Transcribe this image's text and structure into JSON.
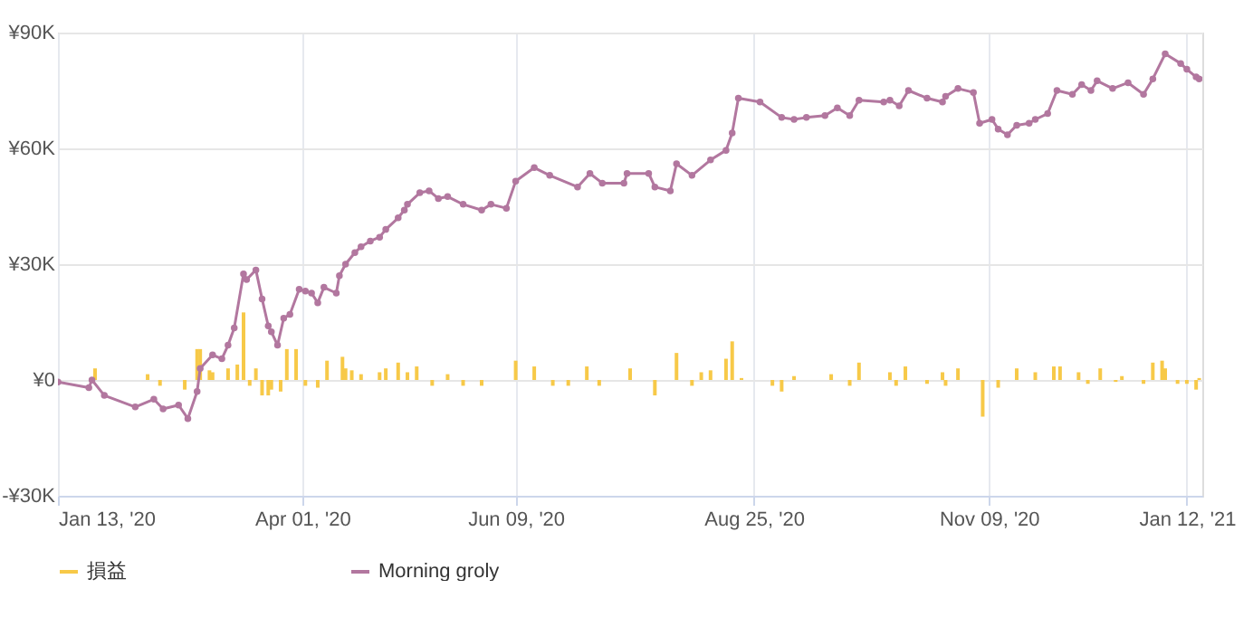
{
  "chart_data": {
    "type": "line",
    "legend": "bottom",
    "grid": true,
    "marker": "circle",
    "line_style": "solid",
    "ylim": [
      -30,
      90
    ],
    "yticks": [
      {
        "value": -30,
        "label": "-¥30K"
      },
      {
        "value": 0,
        "label": "¥0"
      },
      {
        "value": 30,
        "label": "¥30K"
      },
      {
        "value": 60,
        "label": "¥60K"
      },
      {
        "value": 90,
        "label": "¥90K"
      }
    ],
    "xlim": [
      "2020-01-13",
      "2021-01-17"
    ],
    "xticks": [
      {
        "value": "2020-01-13",
        "label": "Jan 13, '20"
      },
      {
        "value": "2020-04-01",
        "label": "Apr 01, '20"
      },
      {
        "value": "2020-06-09",
        "label": "Jun 09, '20"
      },
      {
        "value": "2020-08-25",
        "label": "Aug 25, '20"
      },
      {
        "value": "2020-11-09",
        "label": "Nov 09, '20"
      },
      {
        "value": "2021-01-12",
        "label": "Jan 12, '21"
      }
    ],
    "series": [
      {
        "name": "損益",
        "type": "bar",
        "color": "#f7c948",
        "x": [
          "2020-01-25",
          "2020-02-11",
          "2020-02-15",
          "2020-02-23",
          "2020-02-27",
          "2020-02-28",
          "2020-03-02",
          "2020-03-03",
          "2020-03-08",
          "2020-03-11",
          "2020-03-13",
          "2020-03-15",
          "2020-03-17",
          "2020-03-19",
          "2020-03-21",
          "2020-03-22",
          "2020-03-25",
          "2020-03-27",
          "2020-03-30",
          "2020-04-02",
          "2020-04-06",
          "2020-04-09",
          "2020-04-14",
          "2020-04-15",
          "2020-04-17",
          "2020-04-20",
          "2020-04-26",
          "2020-04-28",
          "2020-05-02",
          "2020-05-05",
          "2020-05-08",
          "2020-05-13",
          "2020-05-18",
          "2020-05-23",
          "2020-05-29",
          "2020-06-09",
          "2020-06-15",
          "2020-06-21",
          "2020-06-26",
          "2020-07-02",
          "2020-07-06",
          "2020-07-16",
          "2020-07-24",
          "2020-07-31",
          "2020-08-05",
          "2020-08-08",
          "2020-08-11",
          "2020-08-16",
          "2020-08-18",
          "2020-08-21",
          "2020-08-31",
          "2020-09-03",
          "2020-09-07",
          "2020-09-19",
          "2020-09-25",
          "2020-09-28",
          "2020-10-08",
          "2020-10-10",
          "2020-10-13",
          "2020-10-20",
          "2020-10-25",
          "2020-10-26",
          "2020-10-30",
          "2020-11-07",
          "2020-11-12",
          "2020-11-18",
          "2020-11-24",
          "2020-11-30",
          "2020-12-02",
          "2020-12-08",
          "2020-12-11",
          "2020-12-15",
          "2020-12-20",
          "2020-12-22",
          "2020-12-29",
          "2021-01-01",
          "2021-01-04",
          "2021-01-05",
          "2021-01-09",
          "2021-01-12",
          "2021-01-15",
          "2021-01-16"
        ],
        "values": [
          3,
          1.5,
          -1.5,
          -2.5,
          8,
          8,
          2.5,
          2,
          3,
          4,
          17.5,
          -1.5,
          3,
          -4,
          -4,
          -2.5,
          -3,
          8,
          8,
          -1.5,
          -2,
          5,
          6,
          3,
          2.5,
          1.5,
          2,
          3,
          4.5,
          2,
          3.5,
          -1.5,
          1.5,
          -1.5,
          -1.5,
          5,
          3.5,
          -1.5,
          -1.5,
          3.5,
          -1.5,
          3,
          -4,
          7,
          -1.5,
          2,
          2.5,
          5.5,
          10,
          0.5,
          -1.5,
          -3,
          1,
          1.5,
          -1.5,
          4.5,
          2,
          -1.5,
          3.5,
          -1,
          2,
          -1.5,
          3,
          -9.5,
          -2,
          3,
          2,
          3.5,
          3.5,
          2,
          -1,
          3,
          -0.5,
          1,
          -1,
          4.5,
          5,
          3,
          -1,
          -1,
          -2.5,
          0.5
        ]
      },
      {
        "name": "Morning groly",
        "color": "#b2779f",
        "x": [
          "2020-01-13",
          "2020-01-23",
          "2020-01-24",
          "2020-01-28",
          "2020-02-07",
          "2020-02-13",
          "2020-02-16",
          "2020-02-21",
          "2020-02-24",
          "2020-02-27",
          "2020-02-28",
          "2020-03-03",
          "2020-03-06",
          "2020-03-08",
          "2020-03-10",
          "2020-03-13",
          "2020-03-14",
          "2020-03-17",
          "2020-03-19",
          "2020-03-21",
          "2020-03-22",
          "2020-03-24",
          "2020-03-26",
          "2020-03-28",
          "2020-03-31",
          "2020-04-02",
          "2020-04-04",
          "2020-04-06",
          "2020-04-08",
          "2020-04-12",
          "2020-04-13",
          "2020-04-15",
          "2020-04-18",
          "2020-04-20",
          "2020-04-23",
          "2020-04-26",
          "2020-04-28",
          "2020-05-02",
          "2020-05-04",
          "2020-05-05",
          "2020-05-09",
          "2020-05-12",
          "2020-05-15",
          "2020-05-18",
          "2020-05-23",
          "2020-05-29",
          "2020-06-01",
          "2020-06-06",
          "2020-06-09",
          "2020-06-15",
          "2020-06-20",
          "2020-06-29",
          "2020-07-03",
          "2020-07-07",
          "2020-07-14",
          "2020-07-15",
          "2020-07-22",
          "2020-07-24",
          "2020-07-29",
          "2020-07-31",
          "2020-08-05",
          "2020-08-11",
          "2020-08-16",
          "2020-08-18",
          "2020-08-20",
          "2020-08-27",
          "2020-09-03",
          "2020-09-07",
          "2020-09-11",
          "2020-09-17",
          "2020-09-21",
          "2020-09-25",
          "2020-09-28",
          "2020-10-06",
          "2020-10-08",
          "2020-10-11",
          "2020-10-14",
          "2020-10-20",
          "2020-10-25",
          "2020-10-26",
          "2020-10-30",
          "2020-11-04",
          "2020-11-06",
          "2020-11-10",
          "2020-11-12",
          "2020-11-15",
          "2020-11-18",
          "2020-11-22",
          "2020-11-24",
          "2020-11-28",
          "2020-12-01",
          "2020-12-06",
          "2020-12-09",
          "2020-12-12",
          "2020-12-14",
          "2020-12-19",
          "2020-12-24",
          "2020-12-29",
          "2021-01-01",
          "2021-01-05",
          "2021-01-10",
          "2021-01-12",
          "2021-01-15",
          "2021-01-16"
        ],
        "values": [
          -0.5,
          -2,
          0,
          -4,
          -7,
          -5,
          -7.5,
          -6.5,
          -10,
          -3,
          3,
          6.5,
          5.5,
          9,
          13.5,
          27.5,
          26,
          28.5,
          21,
          14,
          12.5,
          9,
          16,
          17,
          23.5,
          23,
          22.5,
          20,
          24,
          22.5,
          27,
          30,
          33,
          34.5,
          36,
          37,
          39,
          42,
          44,
          45.5,
          48.5,
          49,
          47,
          47.5,
          45.5,
          44,
          45.5,
          44.5,
          51.5,
          55,
          53,
          50,
          53.5,
          51,
          51,
          53.5,
          53.5,
          50,
          49,
          56,
          53,
          57,
          59.5,
          64,
          73,
          72,
          68,
          67.5,
          68,
          68.5,
          70.5,
          68.5,
          72.5,
          72,
          72.5,
          71,
          75,
          73,
          72,
          73.5,
          75.5,
          74.5,
          66.5,
          67.5,
          65,
          63.5,
          66,
          66.5,
          67.5,
          69,
          75,
          74,
          76.5,
          75,
          77.5,
          75.5,
          77,
          74,
          78,
          84.5,
          82,
          80.5,
          78.5,
          78
        ]
      }
    ]
  }
}
